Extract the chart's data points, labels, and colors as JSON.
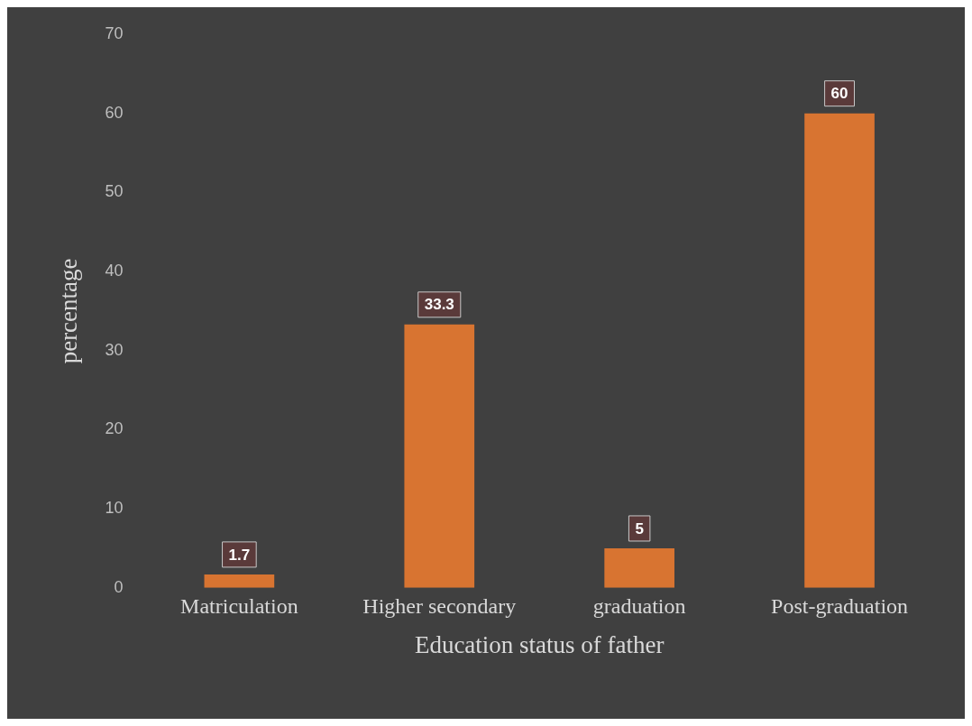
{
  "chart_data": {
    "type": "bar",
    "xlabel": "Education status of father",
    "ylabel": "percentage",
    "categories": [
      "Matriculation",
      "Higher secondary",
      "graduation",
      "Post-graduation"
    ],
    "values": [
      1.7,
      33.3,
      5,
      60
    ],
    "color": "#d87431",
    "ylim": [
      0,
      70
    ],
    "yticks": [
      0,
      10,
      20,
      30,
      40,
      50,
      60,
      70
    ],
    "grid": false,
    "legend": false,
    "data_labels": true
  }
}
